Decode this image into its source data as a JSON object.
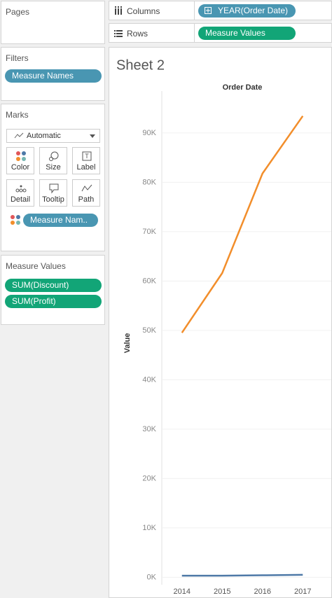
{
  "pages_card": {
    "title": "Pages"
  },
  "shelves": {
    "columns": {
      "label": "Columns",
      "pill": "YEAR(Order Date)"
    },
    "rows": {
      "label": "Rows",
      "pill": "Measure Values"
    }
  },
  "filters_card": {
    "title": "Filters",
    "pills": [
      "Measure Names"
    ]
  },
  "marks_card": {
    "title": "Marks",
    "mark_type": "Automatic",
    "buttons": [
      "Color",
      "Size",
      "Label",
      "Detail",
      "Tooltip",
      "Path"
    ],
    "pills": [
      "Measure Nam.."
    ]
  },
  "measure_values_card": {
    "title": "Measure Values"
  },
  "chart_data": {
    "type": "line",
    "title": "Sheet 2",
    "x_header": "Order Date",
    "y_label": "Value",
    "categories": [
      "2014",
      "2015",
      "2016",
      "2017"
    ],
    "series": [
      {
        "name": "SUM(Discount)",
        "color": "#4e79a7",
        "values": [
          327,
          333,
          407,
          496
        ]
      },
      {
        "name": "SUM(Profit)",
        "color": "#f28e2b",
        "values": [
          49544,
          61619,
          81795,
          93439
        ]
      }
    ],
    "ylim": [
      -1500,
      98500
    ],
    "yticks": [
      {
        "value": 0,
        "label": "0K"
      },
      {
        "value": 10000,
        "label": "10K"
      },
      {
        "value": 20000,
        "label": "20K"
      },
      {
        "value": 30000,
        "label": "30K"
      },
      {
        "value": 40000,
        "label": "40K"
      },
      {
        "value": 50000,
        "label": "50K"
      },
      {
        "value": 60000,
        "label": "60K"
      },
      {
        "value": 70000,
        "label": "70K"
      },
      {
        "value": 80000,
        "label": "80K"
      },
      {
        "value": 90000,
        "label": "90K"
      }
    ],
    "grid": true
  }
}
